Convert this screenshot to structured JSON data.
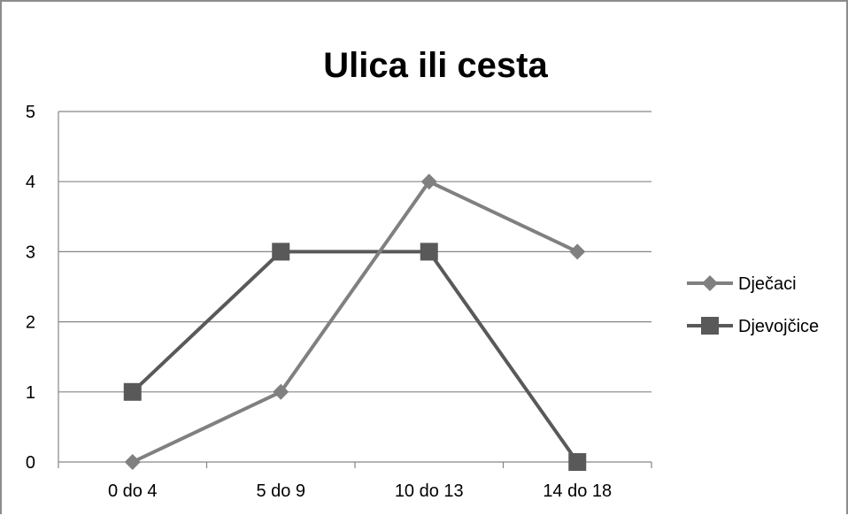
{
  "chart_data": {
    "type": "line",
    "title": "Ulica ili cesta",
    "xlabel": "",
    "ylabel": "",
    "categories": [
      "0 do 4",
      "5 do 9",
      "10 do 13",
      "14 do 18"
    ],
    "ylim": [
      0,
      5
    ],
    "yticks": [
      "0",
      "1",
      "2",
      "3",
      "4",
      "5"
    ],
    "grid": true,
    "legend_position": "right",
    "series": [
      {
        "name": "Dječaci",
        "values": [
          0,
          1,
          4,
          3
        ],
        "marker": "diamond",
        "color": "#808080"
      },
      {
        "name": "Djevojčice",
        "values": [
          1,
          3,
          3,
          0
        ],
        "marker": "square",
        "color": "#595959"
      }
    ]
  }
}
